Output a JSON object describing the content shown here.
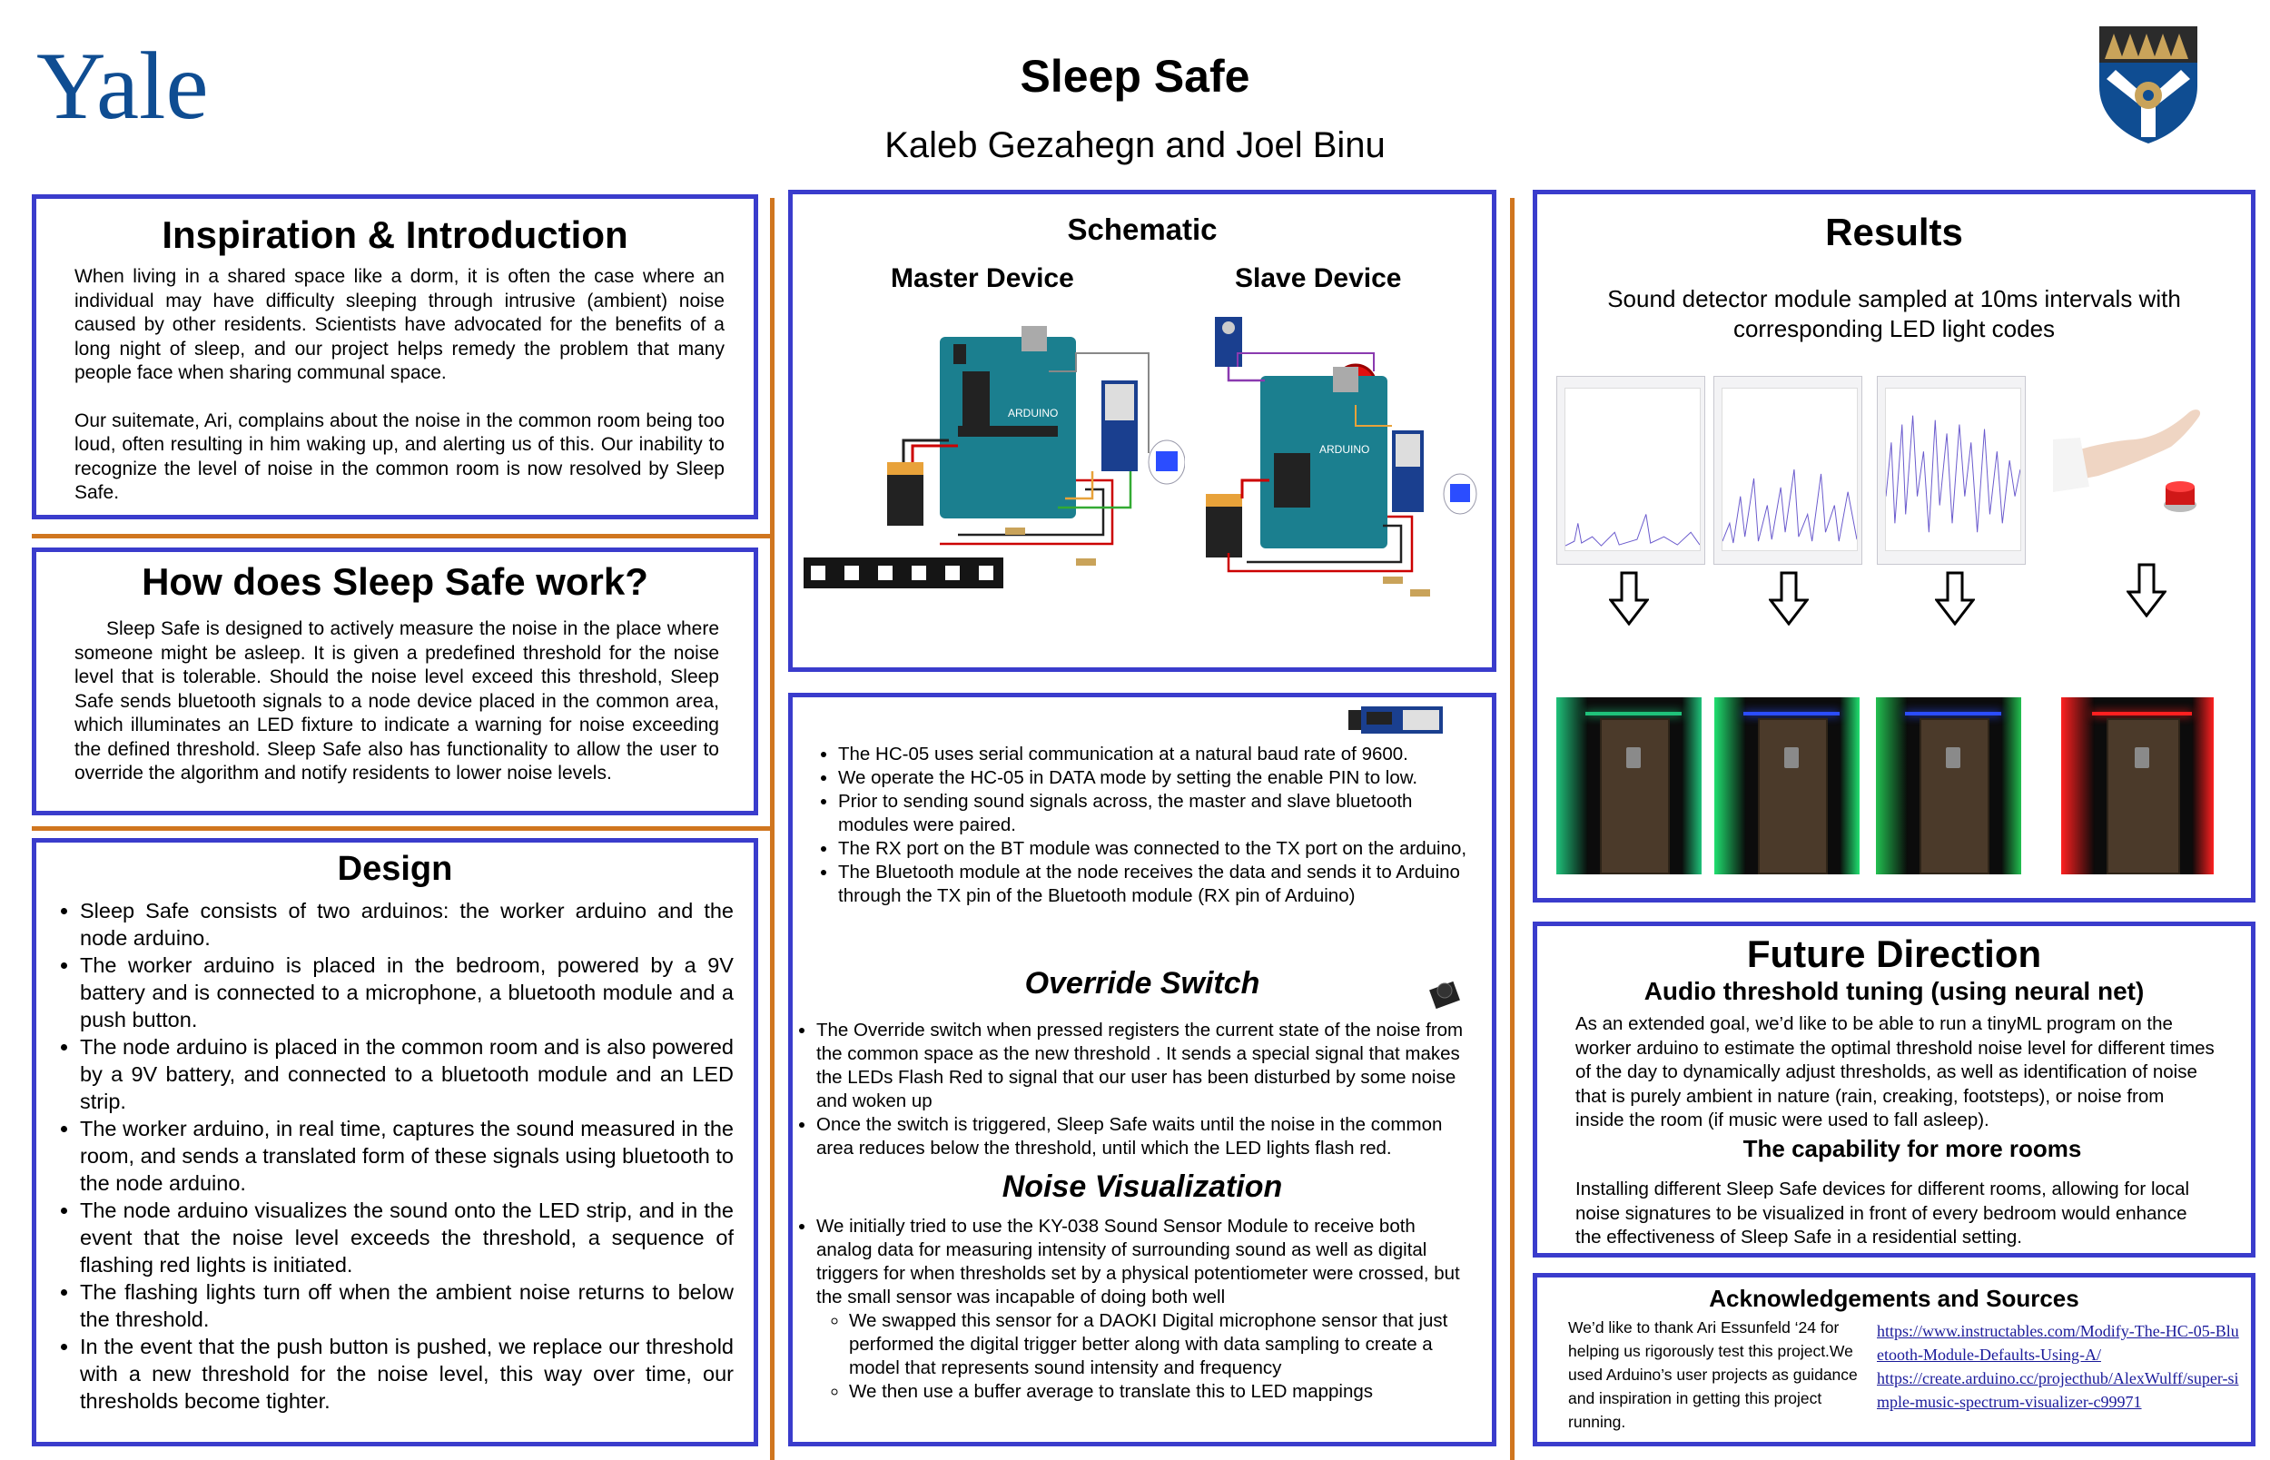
{
  "header": {
    "logo_text": "Yale",
    "title": "Sleep Safe",
    "authors": "Kaleb Gezahegn and Joel Binu",
    "shield_icon": "yale-shield-icon"
  },
  "colors": {
    "panel_border": "#3a3ccc",
    "divider": "#d0761f",
    "yale_blue": "#0f4d92"
  },
  "intro": {
    "title": "Inspiration & Introduction",
    "p1": "When living in a shared space like a dorm, it is often the case where an individual may have difficulty sleeping through intrusive (ambient) noise caused by other residents. Scientists have advocated for the benefits of a long night of sleep, and our project helps remedy the problem that many people face when sharing communal space.",
    "p2": "Our suitemate, Ari, complains about the noise in the common room being too loud, often resulting in him waking up, and alerting us of this. Our inability to recognize the level of noise in the common room is now resolved by Sleep Safe."
  },
  "how": {
    "title": "How does Sleep Safe work?",
    "p1": "Sleep Safe is designed to actively measure the noise in the place where someone might be asleep. It is given a predefined threshold for the noise level that is tolerable. Should the noise level exceed this threshold, Sleep Safe sends bluetooth signals to a node device placed in the common area, which illuminates an LED fixture to indicate a warning for noise exceeding the defined threshold. Sleep Safe also has functionality to allow the user to override the algorithm and notify residents to lower noise levels."
  },
  "design": {
    "title": "Design",
    "items": [
      "Sleep Safe consists of two arduinos: the worker arduino and the node arduino.",
      "The worker arduino is placed in the bedroom, powered by a 9V battery and is connected to a microphone, a bluetooth module and a push button.",
      "The node arduino is placed in the common room and is also powered by a 9V battery, and connected to a bluetooth module and an LED strip.",
      "The worker arduino, in real time, captures the sound measured in the room, and sends a translated form of these signals using bluetooth to the node arduino.",
      "The node arduino visualizes the sound onto the LED strip, and in the event that the noise level exceeds the threshold, a sequence of flashing red lights is initiated.",
      "The flashing lights turn off when the ambient noise returns to below the threshold.",
      "In the event that the push button is pushed, we replace our threshold with a new threshold for the noise level, this way over time, our thresholds become tighter."
    ]
  },
  "schematic": {
    "title": "Schematic",
    "master_label": "Master Device",
    "slave_label": "Slave Device"
  },
  "bluetooth": {
    "items": [
      "The HC-05 uses serial communication at a natural baud rate of 9600.",
      "We operate the HC-05 in DATA mode by setting the enable PIN to low.",
      "Prior to sending sound signals across, the master and slave bluetooth modules were paired.",
      "The RX port on the BT module was connected to the TX port on the arduino,",
      "The Bluetooth module at the node receives the data and sends it to Arduino through the TX pin of the Bluetooth module (RX pin of Arduino)"
    ]
  },
  "override": {
    "title": "Override Switch",
    "items": [
      "The Override switch when pressed registers the current state of the noise from the common space as the new threshold . It sends a special signal that makes the LEDs Flash Red to signal that our user has been disturbed by some noise and woken up",
      "Once the switch is triggered, Sleep Safe waits until the noise in the common area reduces below the threshold, until which the LED lights flash red."
    ]
  },
  "noise": {
    "title": "Noise Visualization",
    "item": "We initially tried to use the KY-038 Sound Sensor Module to receive both analog data for measuring intensity of surrounding sound as well as digital triggers for when thresholds set by a physical potentiometer were crossed, but the small sensor was incapable of doing both well",
    "subitems": [
      "We swapped this sensor for a DAOKI Digital microphone sensor that just performed the digital trigger better along with data sampling to create a model that represents sound intensity and frequency",
      "We then use a buffer average to translate this to LED mappings"
    ]
  },
  "results": {
    "title": "Results",
    "subtitle": "Sound detector module sampled at 10ms intervals with corresponding LED light codes",
    "door_glows": [
      "#1fc27a",
      "#20e070",
      "#22c050",
      "#ff2020"
    ],
    "door_tops": [
      "#1fc27a",
      "#2b4dff",
      "#2b4dff",
      "#ff2020"
    ]
  },
  "future": {
    "title": "Future Direction",
    "sub1": "Audio threshold tuning (using neural net)",
    "p1": "As an extended goal, we’d like to be able to run a tinyML program on the worker arduino to estimate the optimal threshold noise level for different times of the day to dynamically adjust thresholds, as well as identification of noise that is purely ambient in nature (rain, creaking, footsteps), or noise from inside the room (if music were used to fall asleep).",
    "sub2": "The capability for more rooms",
    "p2": "Installing different Sleep Safe devices for different rooms, allowing for local noise signatures to be visualized in front of every bedroom would enhance the effectiveness of Sleep Safe in a residential setting."
  },
  "ack": {
    "title": "Acknowledgements and Sources",
    "text": "We’d like to thank Ari Essunfeld ‘24 for helping us rigorously test this project.We used Arduino’s user projects  as guidance and inspiration in getting this project running.",
    "link1": "https://www.instructables.com/Modify-The-HC-05-Bluetooth-Module-Defaults-Using-A/",
    "link2": "https://create.arduino.cc/projecthub/AlexWulff/super-simple-music-spectrum-visualizer-c99971"
  }
}
